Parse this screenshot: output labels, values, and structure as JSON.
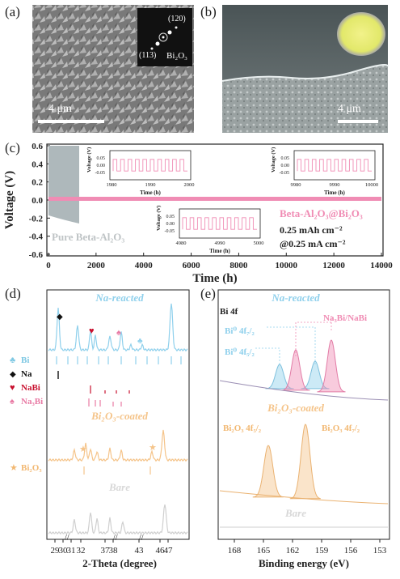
{
  "panels": {
    "a": {
      "letter": "(a)",
      "scale_bar": "4 μm",
      "saed_labels": [
        "(120)",
        "(113)"
      ],
      "saed_phase": "Bi₂O₃"
    },
    "b": {
      "letter": "(b)",
      "scale_bar": "4 μm"
    },
    "c": {
      "letter": "(c)",
      "ylabel": "Voltage (V)",
      "xlabel": "Time (h)",
      "yticks": [
        "0.6",
        "0.4",
        "0.2",
        "0.0",
        "-0.2",
        "-0.4",
        "-0.6"
      ],
      "xticks": [
        "0",
        "2000",
        "4000",
        "6000",
        "8000",
        "10000",
        "12000",
        "14000"
      ],
      "label_bare": "Pure Beta-Al₂O₃",
      "label_coated": "Beta-Al₂O₃@Bi₂O₃",
      "capacity": "0.25 mAh cm⁻²",
      "current": "@0.25 mA cm⁻²",
      "insets": [
        {
          "ylabel": "Voltage (V)",
          "xlabel": "Time (h)",
          "yticks": [
            "0.05",
            "0.00",
            "-0.05"
          ],
          "xticks": [
            "1980",
            "1990",
            "2000"
          ]
        },
        {
          "ylabel": "Voltage (V)",
          "xlabel": "Time (h)",
          "yticks": [
            "0.05",
            "0.00",
            "-0.05"
          ],
          "xticks": [
            "4980",
            "4990",
            "5000"
          ]
        },
        {
          "ylabel": "Voltage (V)",
          "xlabel": "Time (h)",
          "yticks": [
            "0.05",
            "0.00",
            "-0.05"
          ],
          "xticks": [
            "9980",
            "9990",
            "10000"
          ]
        }
      ]
    },
    "d": {
      "letter": "(d)",
      "xlabel": "2-Theta (degree)",
      "xticks": [
        "29",
        "30",
        "31",
        "32",
        "37",
        "38",
        "43",
        "46",
        "47"
      ],
      "traces": [
        "Na-reacted",
        "Bi₂O₃-coated",
        "Bare"
      ],
      "legend": [
        {
          "symbol": "♣",
          "label": "Bi",
          "color": "#7ec8e3"
        },
        {
          "symbol": "◆",
          "label": "Na",
          "color": "#111111"
        },
        {
          "symbol": "♥",
          "label": "NaBi",
          "color": "#c8102e"
        },
        {
          "symbol": "♠",
          "label": "Na₃Bi",
          "color": "#e87aa4"
        },
        {
          "symbol": "★",
          "label": "Bi₂O₃",
          "color": "#f2b872"
        }
      ]
    },
    "e": {
      "letter": "(e)",
      "xlabel": "Binding energy (eV)",
      "xticks": [
        "168",
        "165",
        "162",
        "159",
        "156",
        "153"
      ],
      "core_level": "Bi 4f",
      "traces": [
        "Na-reacted",
        "Bi₂O₃-coated",
        "Bare"
      ],
      "labels": {
        "na3bi": "Na₃Bi/NaBi",
        "bi0_72": "Bi⁰ 4f₇/₂",
        "bi0_52": "Bi⁰ 4f₅/₂",
        "bi2o3_52": "Bi₂O₃ 4f₅/₂",
        "bi2o3_72": "Bi₂O₃ 4f₇/₂"
      }
    }
  },
  "colors": {
    "pink": "#f08cb4",
    "blue": "#8fd0ec",
    "orange": "#f5c48a",
    "gray": "#bcbcbc"
  }
}
